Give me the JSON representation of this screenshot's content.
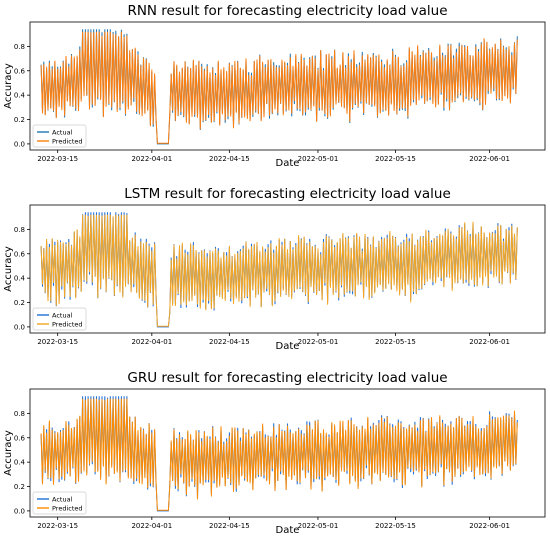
{
  "colors": {
    "actual_rnn": "#1f77b4",
    "actual": "#1e6fd8",
    "predicted": "#ff7f0e",
    "predicted_lstm": "#f5a623",
    "predicted_gru": "#ff8c00",
    "frame": "#000000"
  },
  "chart_data": [
    {
      "type": "line",
      "title": "RNN result for forecasting electricity load value",
      "xlabel": "Date",
      "ylabel": "Accuracy",
      "x_range": [
        "2022-03-10",
        "2022-06-11"
      ],
      "ylim": [
        -0.05,
        1.0
      ],
      "x_ticks": [
        "2022-03-15",
        "2022-04-01",
        "2022-04-15",
        "2022-05-01",
        "2022-05-15",
        "2022-06-01"
      ],
      "y_ticks": [
        "0.0",
        "0.2",
        "0.4",
        "0.6",
        "0.8"
      ],
      "legend_position": "lower-left",
      "x_start": "2022-03-12",
      "x_end": "2022-06-06",
      "gap": [
        "2022-04-02",
        "2022-04-04"
      ],
      "trend": [
        [
          "2022-03-12",
          0.45
        ],
        [
          "2022-03-18",
          0.5
        ],
        [
          "2022-03-20",
          0.62
        ],
        [
          "2022-03-28",
          0.52
        ],
        [
          "2022-04-01",
          0.42
        ],
        [
          "2022-04-10",
          0.4
        ],
        [
          "2022-04-20",
          0.45
        ],
        [
          "2022-05-01",
          0.48
        ],
        [
          "2022-05-15",
          0.5
        ],
        [
          "2022-05-25",
          0.56
        ],
        [
          "2022-06-06",
          0.6
        ]
      ],
      "series": [
        {
          "name": "Actual",
          "color": "#1f77b4"
        },
        {
          "name": "Predicted",
          "color": "#ff7f0e"
        }
      ]
    },
    {
      "type": "line",
      "title": "LSTM result for forecasting electricity load value",
      "xlabel": "Date",
      "ylabel": "Accuracy",
      "x_range": [
        "2022-03-10",
        "2022-06-11"
      ],
      "ylim": [
        -0.05,
        1.0
      ],
      "x_ticks": [
        "2022-03-15",
        "2022-04-01",
        "2022-04-15",
        "2022-05-01",
        "2022-05-15",
        "2022-06-01"
      ],
      "y_ticks": [
        "0.0",
        "0.2",
        "0.4",
        "0.6",
        "0.8"
      ],
      "legend_position": "lower-left",
      "x_start": "2022-03-12",
      "x_end": "2022-06-06",
      "gap": [
        "2022-04-02",
        "2022-04-04"
      ],
      "trend": [
        [
          "2022-03-12",
          0.45
        ],
        [
          "2022-03-18",
          0.5
        ],
        [
          "2022-03-20",
          0.62
        ],
        [
          "2022-03-28",
          0.52
        ],
        [
          "2022-04-01",
          0.42
        ],
        [
          "2022-04-10",
          0.4
        ],
        [
          "2022-04-20",
          0.45
        ],
        [
          "2022-05-01",
          0.48
        ],
        [
          "2022-05-15",
          0.5
        ],
        [
          "2022-05-25",
          0.56
        ],
        [
          "2022-06-06",
          0.6
        ]
      ],
      "series": [
        {
          "name": "Actual",
          "color": "#1e6fd8"
        },
        {
          "name": "Predicted",
          "color": "#f5a623"
        }
      ]
    },
    {
      "type": "line",
      "title": "GRU result for forecasting electricity load value",
      "xlabel": "Date",
      "ylabel": "Accuracy",
      "x_range": [
        "2022-03-10",
        "2022-06-11"
      ],
      "ylim": [
        -0.05,
        1.0
      ],
      "x_ticks": [
        "2022-03-15",
        "2022-04-01",
        "2022-04-15",
        "2022-05-01",
        "2022-05-15",
        "2022-06-01"
      ],
      "y_ticks": [
        "0.0",
        "0.2",
        "0.4",
        "0.6",
        "0.8"
      ],
      "legend_position": "lower-left",
      "x_start": "2022-03-12",
      "x_end": "2022-06-06",
      "gap": [
        "2022-04-02",
        "2022-04-04"
      ],
      "trend": [
        [
          "2022-03-12",
          0.45
        ],
        [
          "2022-03-18",
          0.5
        ],
        [
          "2022-03-20",
          0.62
        ],
        [
          "2022-03-28",
          0.52
        ],
        [
          "2022-04-01",
          0.42
        ],
        [
          "2022-04-10",
          0.4
        ],
        [
          "2022-04-20",
          0.45
        ],
        [
          "2022-05-01",
          0.48
        ],
        [
          "2022-05-15",
          0.5
        ],
        [
          "2022-05-25",
          0.5
        ],
        [
          "2022-06-06",
          0.55
        ]
      ],
      "series": [
        {
          "name": "Actual",
          "color": "#1e6fd8"
        },
        {
          "name": "Predicted",
          "color": "#ff8c00"
        }
      ]
    }
  ]
}
